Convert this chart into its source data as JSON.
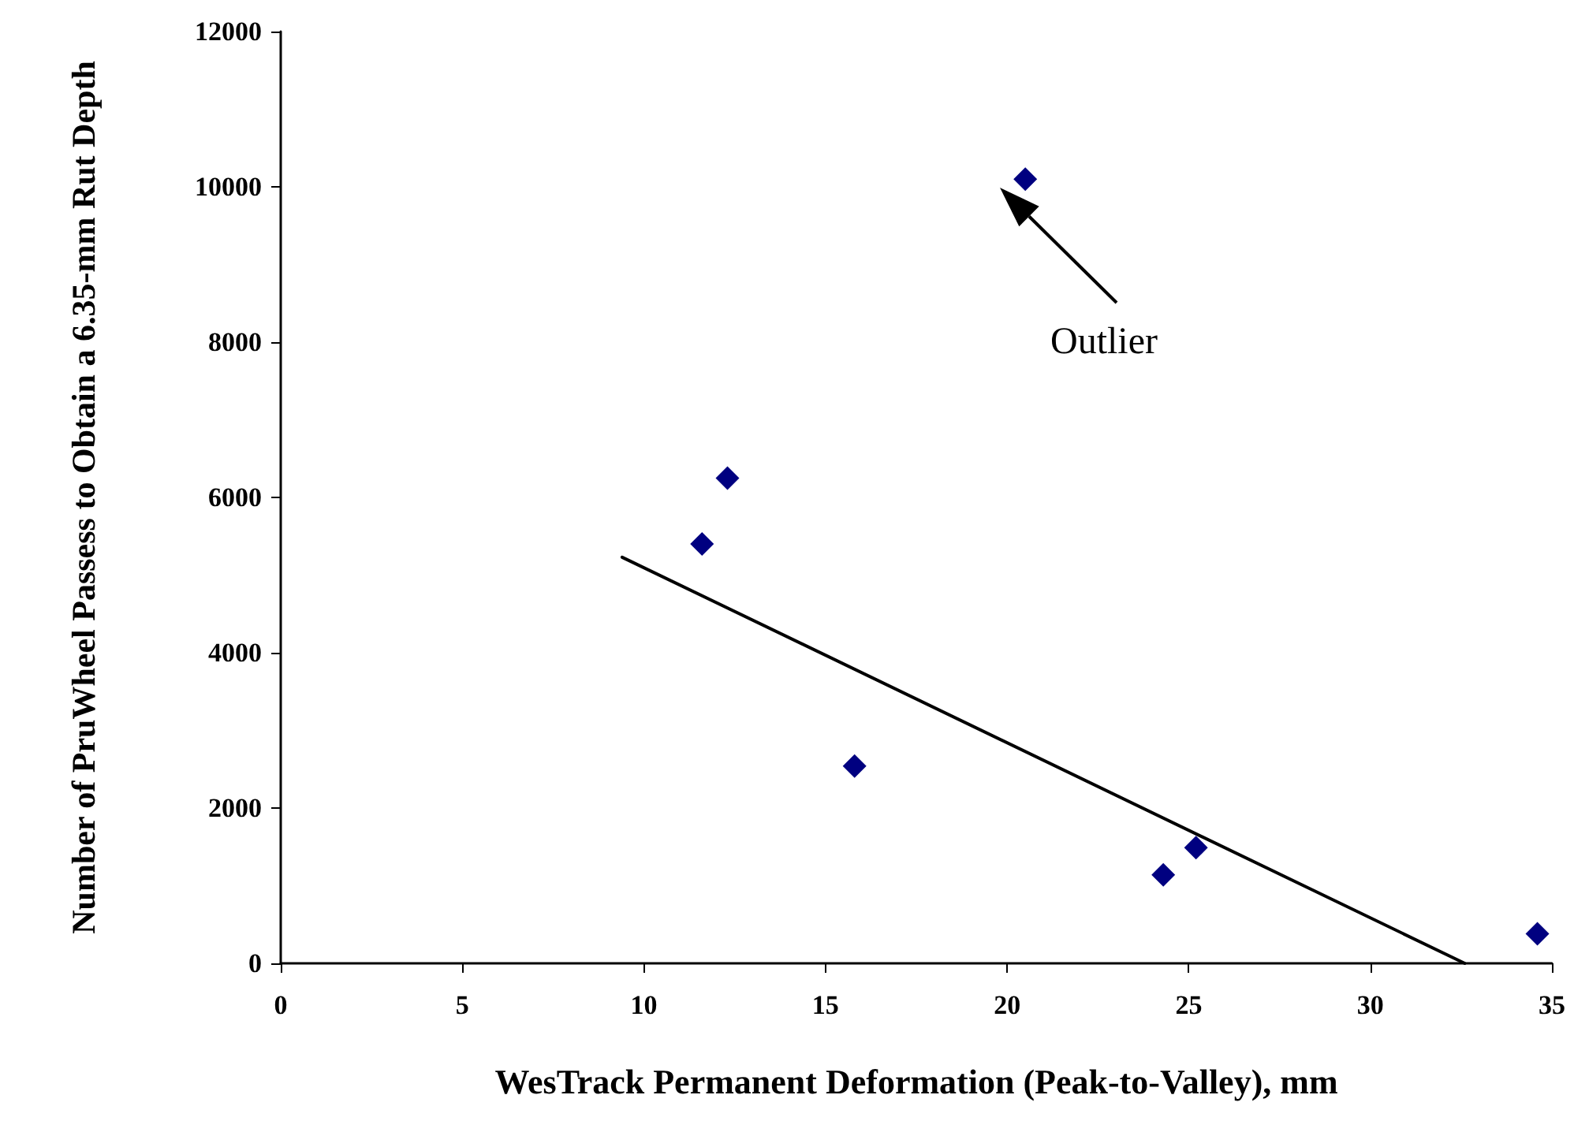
{
  "chart_data": {
    "type": "scatter",
    "xlabel": "WesTrack Permanent Deformation (Peak-to-Valley), mm",
    "ylabel": "Number of PruWheel Passess to Obtain a 6.35-mm Rut Depth",
    "xlim": [
      0,
      35
    ],
    "xticks": [
      0,
      5,
      10,
      15,
      20,
      25,
      30,
      35
    ],
    "ylim": [
      0,
      12000
    ],
    "yticks": [
      0,
      2000,
      4000,
      6000,
      8000,
      10000,
      12000
    ],
    "grid": false,
    "series": [
      {
        "color": "#000080",
        "marker": "diamond",
        "x": [
          11.6,
          12.3,
          15.8,
          20.5,
          24.3,
          25.2,
          34.6
        ],
        "values": [
          5400,
          6250,
          2540,
          10100,
          1140,
          1490,
          380
        ]
      },
      {
        "type": "line",
        "color": "#000000",
        "marker": "none",
        "line_style": "solid",
        "x": [
          9.4,
          32.6
        ],
        "values": [
          5230,
          0
        ]
      }
    ],
    "annotations": [
      "Outlier"
    ]
  }
}
